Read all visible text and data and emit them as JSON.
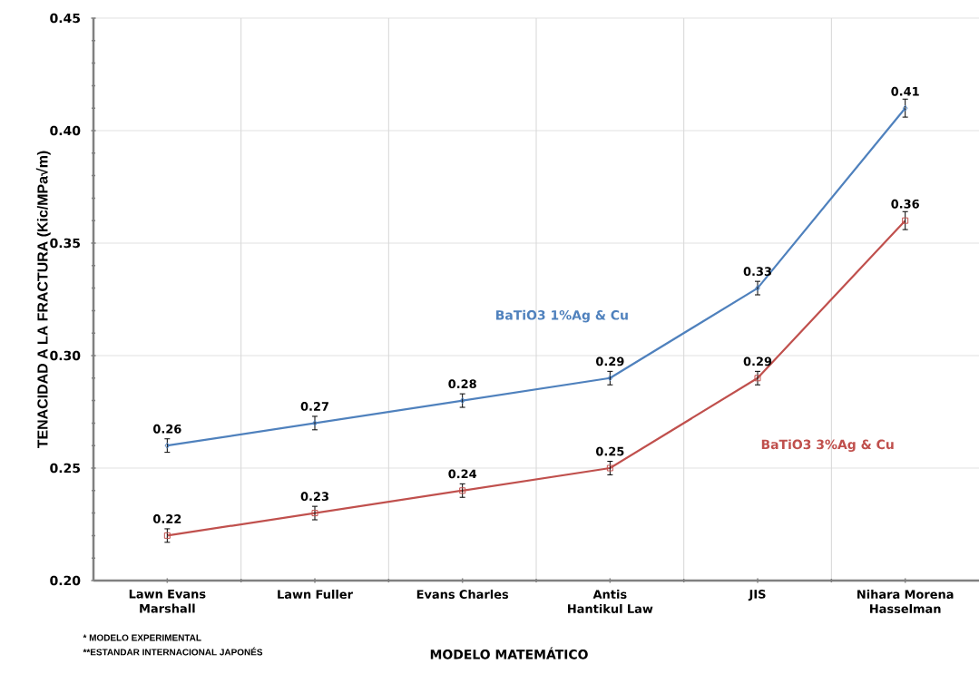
{
  "chart_data": {
    "type": "line",
    "xlabel": "MODELO MATEMÁTICO",
    "ylabel": "TENACIDAD A LA FRACTURA (Kic/MPa√m)",
    "categories": [
      "Lawn Evans Marshall",
      "Lawn Fuller",
      "Evans Charles",
      "Antis Hantikul Law",
      "JIS",
      "Nihara Morena Hasselman"
    ],
    "series": [
      {
        "name": "BaTiO3 1%Ag & Cu",
        "color": "#4f81bd",
        "marker": "diamond",
        "values": [
          0.26,
          0.27,
          0.28,
          0.29,
          0.33,
          0.41
        ],
        "errors": [
          0.003,
          0.003,
          0.003,
          0.003,
          0.003,
          0.004
        ]
      },
      {
        "name": "BaTiO3 3%Ag & Cu",
        "color": "#c0504d",
        "marker": "square",
        "values": [
          0.22,
          0.23,
          0.24,
          0.25,
          0.29,
          0.36
        ],
        "errors": [
          0.003,
          0.003,
          0.003,
          0.003,
          0.003,
          0.004
        ]
      }
    ],
    "ylim": [
      0.2,
      0.45
    ],
    "yticks": [
      {
        "value": 0.2,
        "label": "0.20"
      },
      {
        "value": 0.25,
        "label": "0.25"
      },
      {
        "value": 0.3,
        "label": "0.30"
      },
      {
        "value": 0.35,
        "label": "0.35"
      },
      {
        "value": 0.4,
        "label": "0.40"
      },
      {
        "value": 0.45,
        "label": "0.45"
      }
    ],
    "grid": true,
    "data_labels": true,
    "annotations": [
      "*  MODELO EXPERIMENTAL",
      "**ESTANDAR INTERNACIONAL JAPONÉS"
    ]
  }
}
